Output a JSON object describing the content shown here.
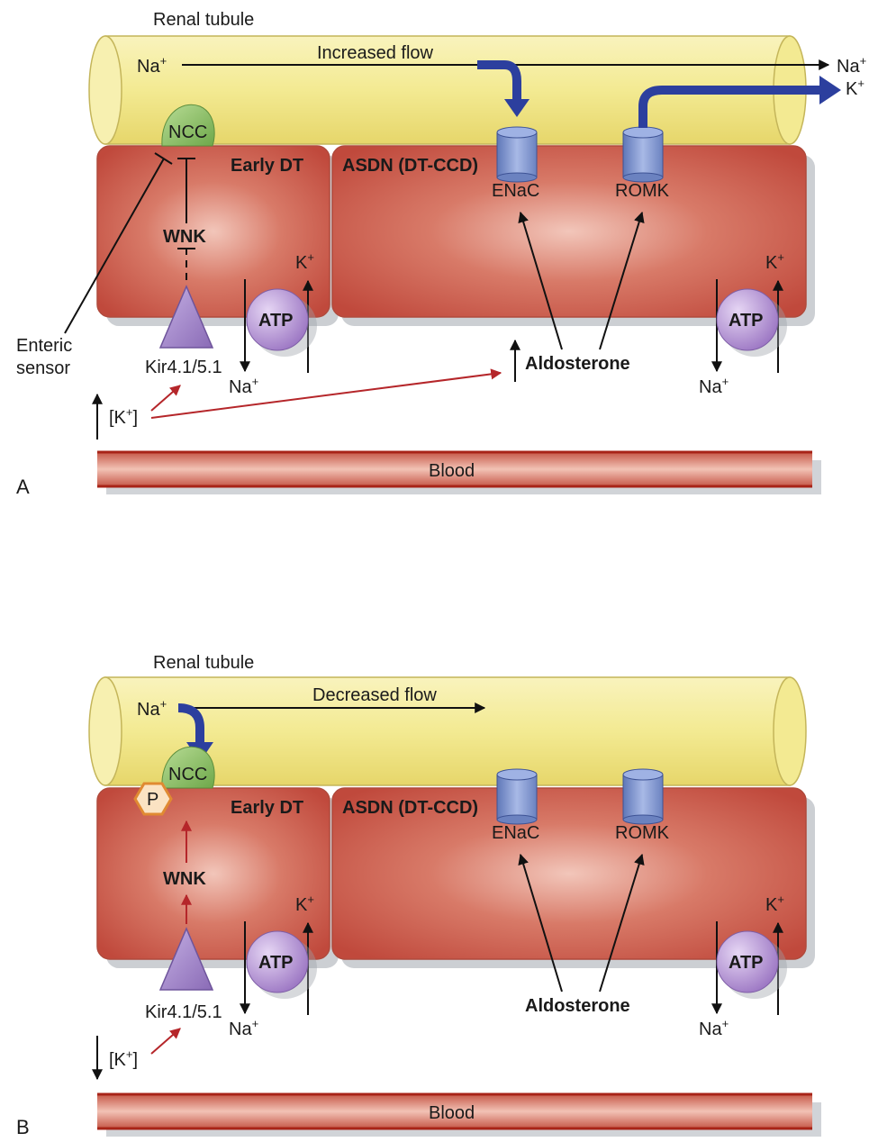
{
  "panel_a": {
    "letter": "A",
    "tubule_label": "Renal tubule",
    "flow_label": "Increased flow",
    "ion_na": "Na",
    "ion_k": "K",
    "plus": "+",
    "ncc": "NCC",
    "early_dt": "Early DT",
    "asdn": "ASDN (DT-CCD)",
    "enac": "ENaC",
    "romk": "ROMK",
    "wnk": "WNK",
    "kir": "Kir4.1/5.1",
    "atp": "ATP",
    "aldosterone": "Aldosterone",
    "enteric_sensor_1": "Enteric",
    "enteric_sensor_2": "sensor",
    "k_conc_open": "[K",
    "k_conc_close": "]",
    "blood": "Blood"
  },
  "panel_b": {
    "letter": "B",
    "tubule_label": "Renal tubule",
    "flow_label": "Decreased flow",
    "ion_na": "Na",
    "ion_k": "K",
    "plus": "+",
    "ncc": "NCC",
    "phospho": "P",
    "early_dt": "Early DT",
    "asdn": "ASDN (DT-CCD)",
    "enac": "ENaC",
    "romk": "ROMK",
    "wnk": "WNK",
    "kir": "Kir4.1/5.1",
    "atp": "ATP",
    "aldosterone": "Aldosterone",
    "k_conc_open": "[K",
    "k_conc_close": "]",
    "blood": "Blood"
  },
  "colors": {
    "tubule": "#f3ea92",
    "cell": "#c9584a",
    "channel": "#8aa0d6",
    "ncc": "#8dc06a",
    "atp": "#b99ad6",
    "kir": "#a68ac9",
    "blood": "#d0705f",
    "blue_arrow": "#2c3f9e",
    "red_arrow": "#b5262a",
    "phospho": "#e9a35a"
  }
}
